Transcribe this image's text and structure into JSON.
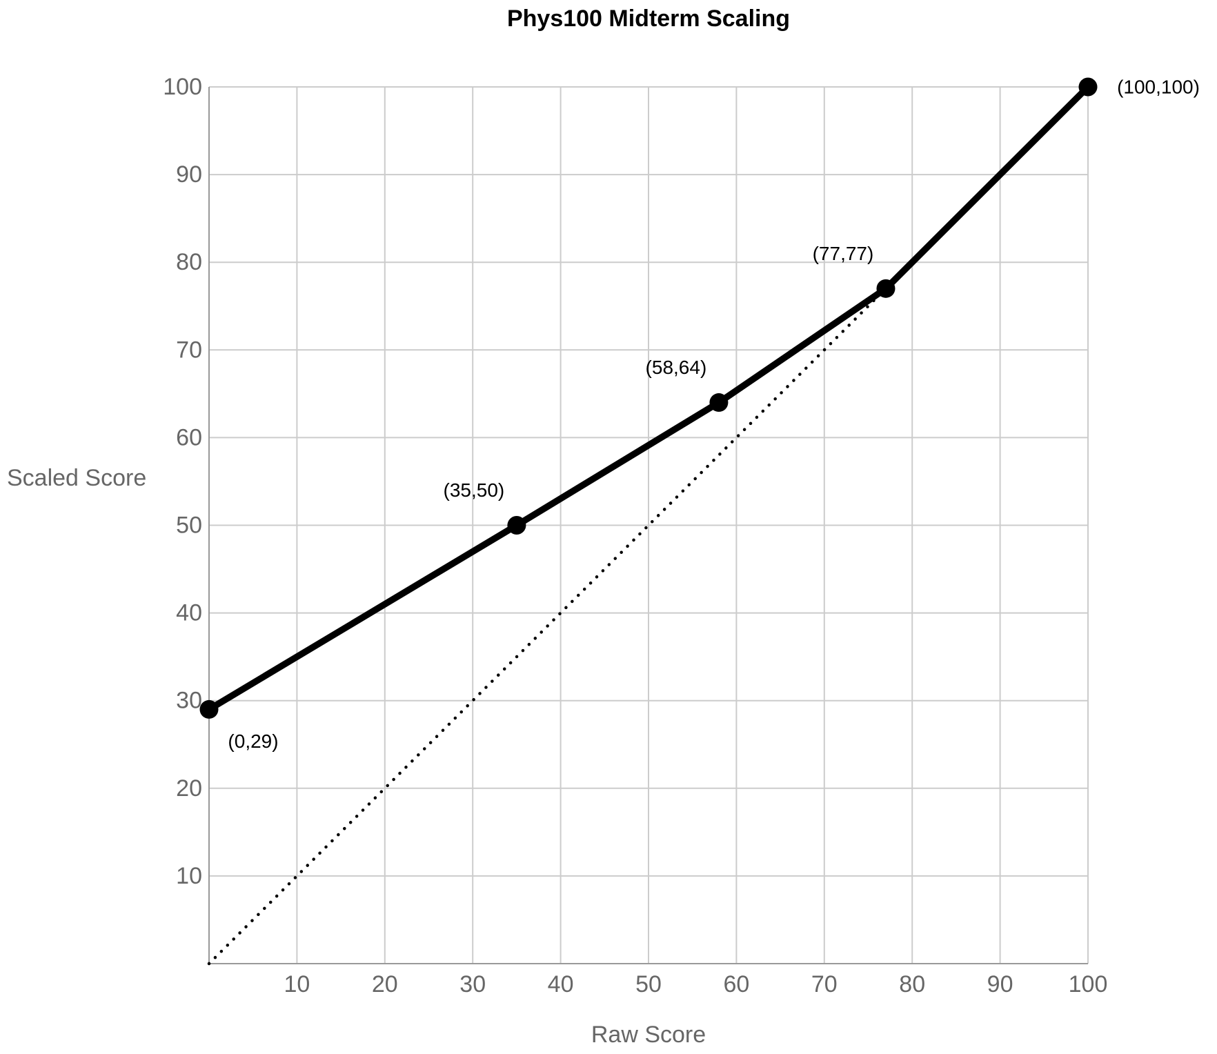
{
  "chart_data": {
    "type": "line",
    "title": "Phys100 Midterm Scaling",
    "xlabel": "Raw Score",
    "ylabel": "Scaled Score",
    "xlim": [
      0,
      100
    ],
    "ylim": [
      0,
      100
    ],
    "x_ticks": [
      10,
      20,
      30,
      40,
      50,
      60,
      70,
      80,
      90,
      100
    ],
    "y_ticks": [
      10,
      20,
      30,
      40,
      50,
      60,
      70,
      80,
      90,
      100
    ],
    "grid": true,
    "legend": "none",
    "series": [
      {
        "name": "identity-reference-line",
        "style": "dotted",
        "color": "#000000",
        "points": [
          {
            "x": 0,
            "y": 0
          },
          {
            "x": 100,
            "y": 100
          }
        ]
      },
      {
        "name": "scaling-curve",
        "style": "solid",
        "color": "#000000",
        "marker": "circle",
        "points": [
          {
            "x": 0,
            "y": 29,
            "label": "(0,29)",
            "label_pos": "below-right"
          },
          {
            "x": 35,
            "y": 50,
            "label": "(35,50)",
            "label_pos": "above-left"
          },
          {
            "x": 58,
            "y": 64,
            "label": "(58,64)",
            "label_pos": "above-left"
          },
          {
            "x": 77,
            "y": 77,
            "label": "(77,77)",
            "label_pos": "above-left"
          },
          {
            "x": 100,
            "y": 100,
            "label": "(100,100)",
            "label_pos": "right"
          }
        ]
      }
    ],
    "colors": {
      "grid": "#cccccc",
      "axis": "#999999",
      "tick_text": "#666666",
      "axis_title_text": "#666666",
      "series": "#000000",
      "data_label_text": "#000000",
      "background": "#ffffff"
    }
  }
}
